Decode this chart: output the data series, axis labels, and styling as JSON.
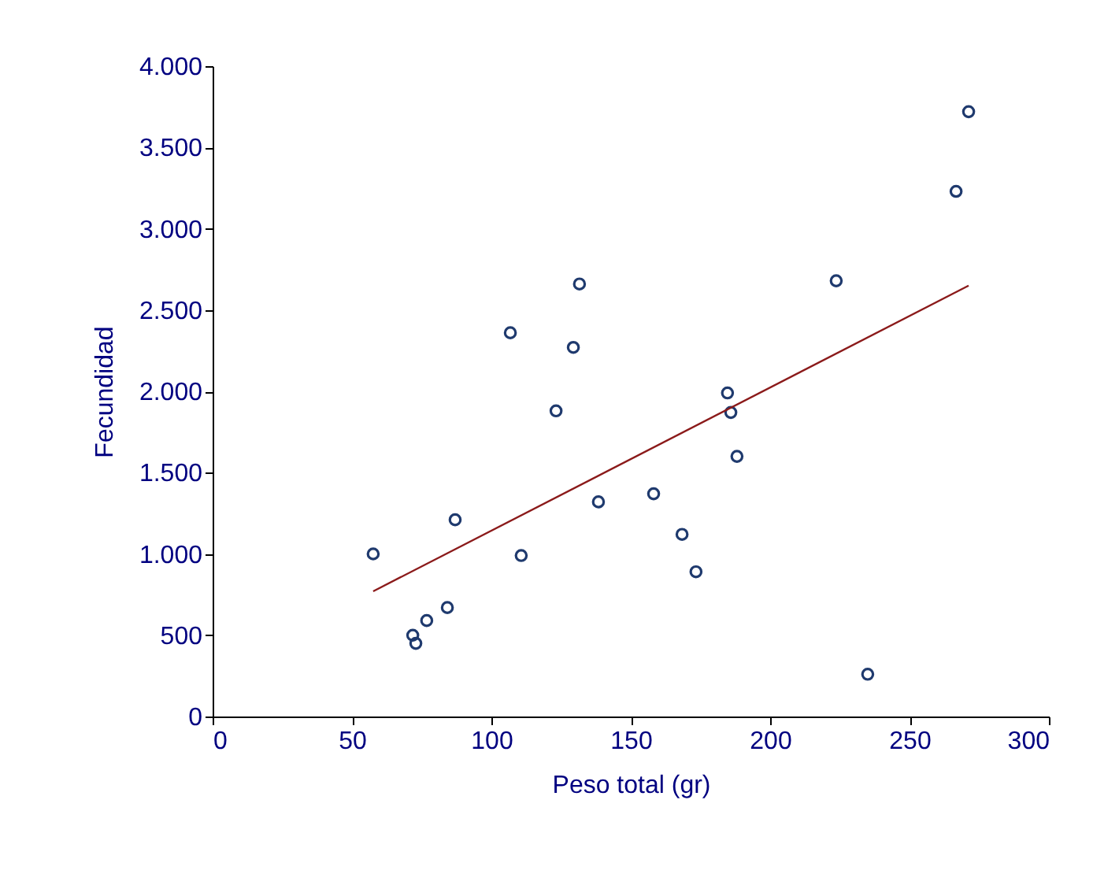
{
  "chart_data": {
    "type": "scatter",
    "xlabel": "Peso total (gr)",
    "ylabel": "Fecundidad",
    "xlim": [
      0,
      300
    ],
    "xticks": [
      0,
      50,
      100,
      150,
      200,
      250,
      300
    ],
    "ylim": [
      0,
      4000
    ],
    "yticks": [
      0,
      500,
      {
        "value": 1000,
        "label": "1.000"
      },
      {
        "value": 1500,
        "label": "1.500"
      },
      {
        "value": 2000,
        "label": "2.000"
      },
      {
        "value": 2500,
        "label": "2.500"
      },
      {
        "value": 3000,
        "label": "3.000"
      },
      {
        "value": 3500,
        "label": "3.500"
      },
      {
        "value": 4000,
        "label": "4.000"
      }
    ],
    "grid": false,
    "series": [
      {
        "marker": "circle",
        "color": "#1f3a6e",
        "x": [
          57.6,
          71.8,
          72.9,
          76.8,
          84.2,
          87,
          106.8,
          110.7,
          123.2,
          129.4,
          131.6,
          138.4,
          158.2,
          168.4,
          173.4,
          184.7,
          185.9,
          188.1,
          223.7,
          235,
          266.7,
          271.2
        ],
        "values": [
          1000,
          500,
          450,
          590,
          670,
          1210,
          2360,
          990,
          1880,
          2270,
          2660,
          1320,
          1370,
          1120,
          890,
          1990,
          1870,
          1600,
          2680,
          260,
          3230,
          3720
        ]
      },
      {
        "type": "line",
        "color": "#8b1a1a",
        "line_style": "solid",
        "x": [
          57.6,
          271.2
        ],
        "values": [
          770,
          2650
        ]
      }
    ]
  }
}
